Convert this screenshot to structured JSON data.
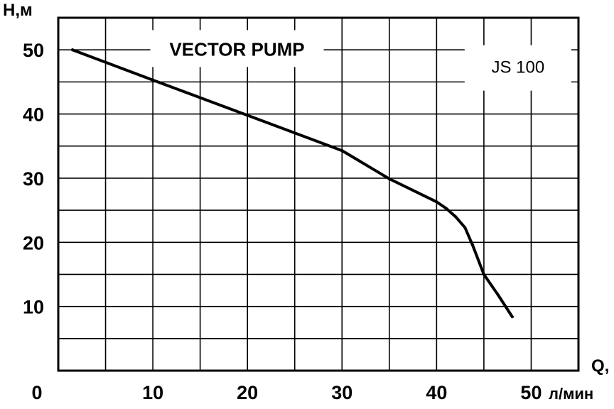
{
  "chart_data": {
    "type": "line",
    "title": "VECTOR PUMP",
    "model_label": "JS 100",
    "xlabel": "Q,",
    "x_unit": "л/мин",
    "ylabel": "H,м",
    "xlim": [
      0,
      55
    ],
    "ylim": [
      0,
      55
    ],
    "x_ticks": [
      0,
      10,
      20,
      30,
      40,
      50
    ],
    "y_ticks": [
      10,
      20,
      30,
      40,
      50
    ],
    "x_tick_labels": [
      "0",
      "10",
      "20",
      "30",
      "40",
      "50"
    ],
    "y_tick_labels": [
      "10",
      "20",
      "30",
      "40",
      "50"
    ],
    "grid": true,
    "series": [
      {
        "x": [
          1.5,
          10,
          20,
          30,
          35,
          40,
          41,
          42,
          43,
          43.8,
          45,
          46.5,
          48
        ],
        "y": [
          50,
          45.3,
          39.8,
          34.3,
          29.9,
          26.3,
          25.3,
          24,
          22.3,
          19.6,
          15,
          11.8,
          8.4
        ]
      }
    ],
    "colors": {
      "line": "#000000",
      "grid": "#000000",
      "label_box": "#ffffff"
    }
  }
}
